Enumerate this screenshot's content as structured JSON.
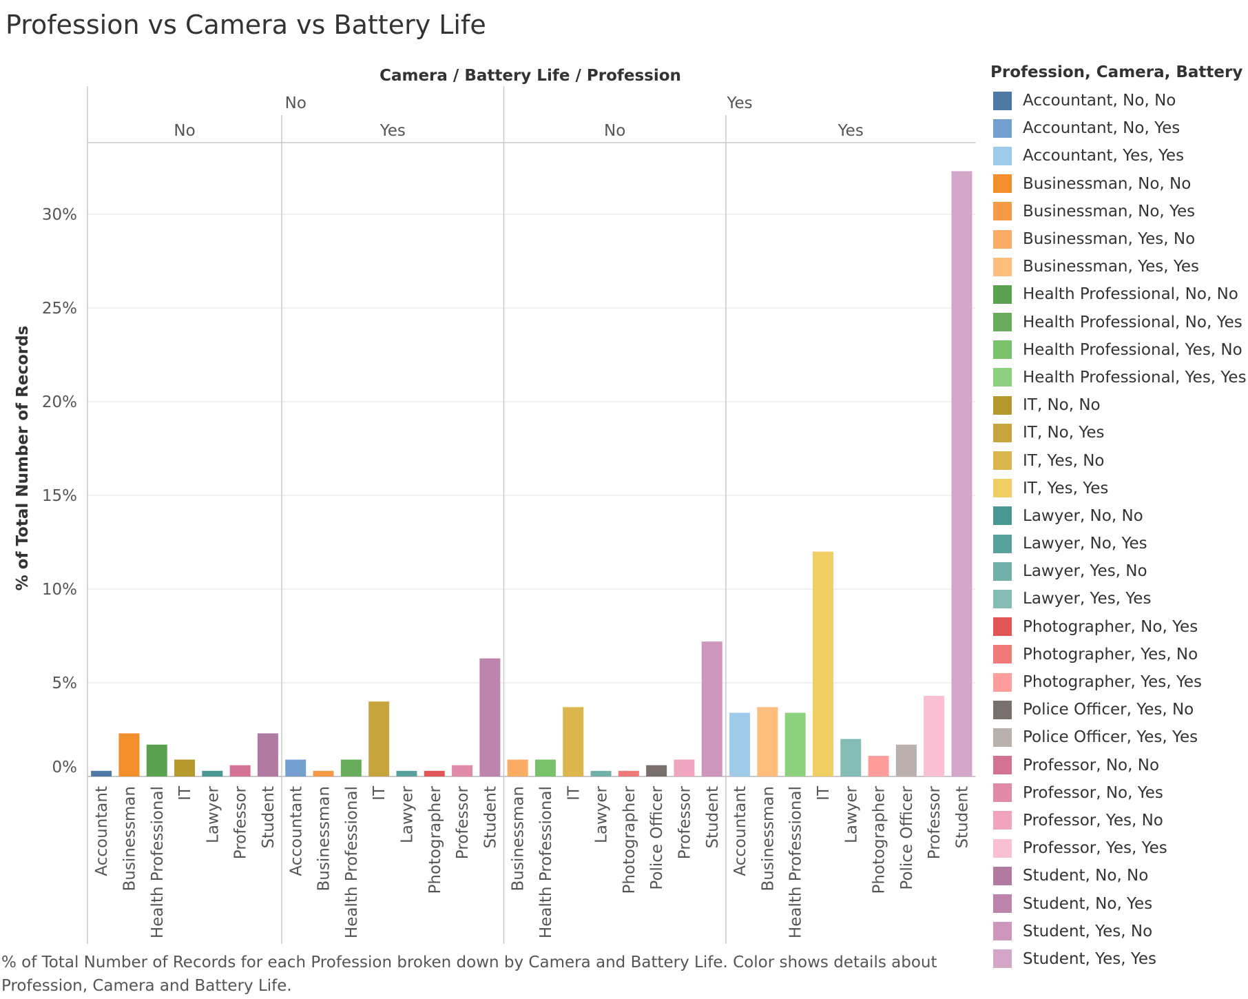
{
  "title": "Profession vs Camera vs Battery Life",
  "caption": "% of Total Number of Records for each Profession broken down by Camera and Battery Life.  Color shows details about Profession, Camera and Battery Life.",
  "header_label": "Camera  /  Battery Life  /  Profession",
  "legend_title": "Profession, Camera, Battery Life",
  "chart_data": {
    "type": "bar",
    "ylabel": "% of Total Number of Records",
    "ylim": [
      0,
      33
    ],
    "yticks": [
      0,
      5,
      10,
      15,
      20,
      25,
      30
    ],
    "ytick_labels": [
      "0%",
      "5%",
      "10%",
      "15%",
      "20%",
      "25%",
      "30%"
    ],
    "grid": true,
    "legend_position": "right",
    "groups": [
      {
        "camera": "No",
        "battery": "No",
        "bars": [
          {
            "category": "Accountant",
            "value": 0.3,
            "series": "Accountant, No, No"
          },
          {
            "category": "Businessman",
            "value": 2.3,
            "series": "Businessman, No, No"
          },
          {
            "category": "Health Professional",
            "value": 1.7,
            "series": "Health Professional, No, No"
          },
          {
            "category": "IT",
            "value": 0.9,
            "series": "IT, No, No"
          },
          {
            "category": "Lawyer",
            "value": 0.3,
            "series": "Lawyer, No, No"
          },
          {
            "category": "Professor",
            "value": 0.6,
            "series": "Professor, No, No"
          },
          {
            "category": "Student",
            "value": 2.3,
            "series": "Student, No, No"
          }
        ]
      },
      {
        "camera": "No",
        "battery": "Yes",
        "bars": [
          {
            "category": "Accountant",
            "value": 0.9,
            "series": "Accountant, No, Yes"
          },
          {
            "category": "Businessman",
            "value": 0.3,
            "series": "Businessman, No, Yes"
          },
          {
            "category": "Health Professional",
            "value": 0.9,
            "series": "Health Professional, No, Yes"
          },
          {
            "category": "IT",
            "value": 4.0,
            "series": "IT, No, Yes"
          },
          {
            "category": "Lawyer",
            "value": 0.3,
            "series": "Lawyer, No, Yes"
          },
          {
            "category": "Photographer",
            "value": 0.3,
            "series": "Photographer, No, Yes"
          },
          {
            "category": "Professor",
            "value": 0.6,
            "series": "Professor, No, Yes"
          },
          {
            "category": "Student",
            "value": 6.3,
            "series": "Student, No, Yes"
          }
        ]
      },
      {
        "camera": "Yes",
        "battery": "No",
        "bars": [
          {
            "category": "Businessman",
            "value": 0.9,
            "series": "Businessman, Yes, No"
          },
          {
            "category": "Health Professional",
            "value": 0.9,
            "series": "Health Professional, Yes, No"
          },
          {
            "category": "IT",
            "value": 3.7,
            "series": "IT, Yes, No"
          },
          {
            "category": "Lawyer",
            "value": 0.3,
            "series": "Lawyer, Yes, No"
          },
          {
            "category": "Photographer",
            "value": 0.3,
            "series": "Photographer, Yes, No"
          },
          {
            "category": "Police Officer",
            "value": 0.6,
            "series": "Police Officer, Yes, No"
          },
          {
            "category": "Professor",
            "value": 0.9,
            "series": "Professor, Yes, No"
          },
          {
            "category": "Student",
            "value": 7.2,
            "series": "Student, Yes, No"
          }
        ]
      },
      {
        "camera": "Yes",
        "battery": "Yes",
        "bars": [
          {
            "category": "Accountant",
            "value": 3.4,
            "series": "Accountant, Yes, Yes"
          },
          {
            "category": "Businessman",
            "value": 3.7,
            "series": "Businessman, Yes, Yes"
          },
          {
            "category": "Health Professional",
            "value": 3.4,
            "series": "Health Professional, Yes, Yes"
          },
          {
            "category": "IT",
            "value": 12.0,
            "series": "IT, Yes, Yes"
          },
          {
            "category": "Lawyer",
            "value": 2.0,
            "series": "Lawyer, Yes, Yes"
          },
          {
            "category": "Photographer",
            "value": 1.1,
            "series": "Photographer, Yes, Yes"
          },
          {
            "category": "Police Officer",
            "value": 1.7,
            "series": "Police Officer, Yes, Yes"
          },
          {
            "category": "Professor",
            "value": 4.3,
            "series": "Professor, Yes, Yes"
          },
          {
            "category": "Student",
            "value": 32.3,
            "series": "Student, Yes, Yes"
          }
        ]
      }
    ],
    "legend": [
      {
        "label": "Accountant, No, No",
        "color": "#4e79a7"
      },
      {
        "label": "Accountant, No, Yes",
        "color": "#73a0ce"
      },
      {
        "label": "Accountant, Yes, Yes",
        "color": "#a0cbe8"
      },
      {
        "label": "Businessman, No, No",
        "color": "#f28e2b"
      },
      {
        "label": "Businessman, No, Yes",
        "color": "#f79a45"
      },
      {
        "label": "Businessman, Yes, No",
        "color": "#fbac64"
      },
      {
        "label": "Businessman, Yes, Yes",
        "color": "#ffbe7d"
      },
      {
        "label": "Health Professional, No, No",
        "color": "#59a14f"
      },
      {
        "label": "Health Professional, No, Yes",
        "color": "#67ad5b"
      },
      {
        "label": "Health Professional, Yes, No",
        "color": "#79c26b"
      },
      {
        "label": "Health Professional, Yes, Yes",
        "color": "#8cd17d"
      },
      {
        "label": "IT, No, No",
        "color": "#b6992d"
      },
      {
        "label": "IT, No, Yes",
        "color": "#c7a53c"
      },
      {
        "label": "IT, Yes, No",
        "color": "#dcb64c"
      },
      {
        "label": "IT, Yes, Yes",
        "color": "#f1ce63"
      },
      {
        "label": "Lawyer, No, No",
        "color": "#499894"
      },
      {
        "label": "Lawyer, No, Yes",
        "color": "#5aa29d"
      },
      {
        "label": "Lawyer, Yes, No",
        "color": "#72b0aa"
      },
      {
        "label": "Lawyer, Yes, Yes",
        "color": "#86bcb6"
      },
      {
        "label": "Photographer, No, Yes",
        "color": "#e15759"
      },
      {
        "label": "Photographer, Yes, No",
        "color": "#ef7a78"
      },
      {
        "label": "Photographer, Yes, Yes",
        "color": "#ff9d9a"
      },
      {
        "label": "Police Officer, Yes, No",
        "color": "#79706e"
      },
      {
        "label": "Police Officer, Yes, Yes",
        "color": "#bab0ac"
      },
      {
        "label": "Professor, No, No",
        "color": "#d37295"
      },
      {
        "label": "Professor, No, Yes",
        "color": "#e18aaa"
      },
      {
        "label": "Professor, Yes, No",
        "color": "#f0a4bf"
      },
      {
        "label": "Professor, Yes, Yes",
        "color": "#fabfd2"
      },
      {
        "label": "Student, No, No",
        "color": "#b07aa1"
      },
      {
        "label": "Student, No, Yes",
        "color": "#bd85ad"
      },
      {
        "label": "Student, Yes, No",
        "color": "#cd96bd"
      },
      {
        "label": "Student, Yes, Yes",
        "color": "#d4a6c8"
      }
    ]
  }
}
